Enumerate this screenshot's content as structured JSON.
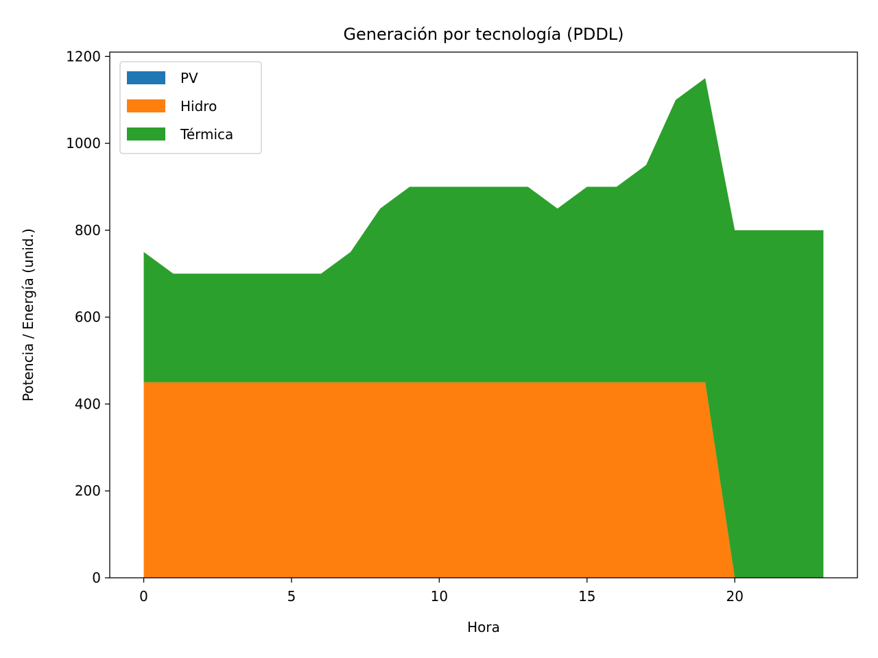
{
  "chart_data": {
    "type": "area",
    "stacked": true,
    "title": "Generación por tecnología (PDDL)",
    "xlabel": "Hora",
    "ylabel": "Potencia / Energía (unid.)",
    "xlim": [
      -1.15,
      24.15
    ],
    "ylim": [
      0,
      1210
    ],
    "xticks": [
      0,
      5,
      10,
      15,
      20
    ],
    "yticks": [
      0,
      200,
      400,
      600,
      800,
      1000,
      1200
    ],
    "x": [
      0,
      1,
      2,
      3,
      4,
      5,
      6,
      7,
      8,
      9,
      10,
      11,
      12,
      13,
      14,
      15,
      16,
      17,
      18,
      19,
      20,
      21,
      22,
      23
    ],
    "series": [
      {
        "name": "PV",
        "color": "#1f77b4",
        "values": [
          0,
          0,
          0,
          0,
          0,
          0,
          0,
          0,
          0,
          0,
          0,
          0,
          0,
          0,
          0,
          0,
          0,
          0,
          0,
          0,
          0,
          0,
          0,
          0
        ]
      },
      {
        "name": "Hidro",
        "color": "#ff7f0e",
        "values": [
          450,
          450,
          450,
          450,
          450,
          450,
          450,
          450,
          450,
          450,
          450,
          450,
          450,
          450,
          450,
          450,
          450,
          450,
          450,
          450,
          0,
          0,
          0,
          0
        ]
      },
      {
        "name": "Térmica",
        "color": "#2ca02c",
        "values": [
          300,
          250,
          250,
          250,
          250,
          250,
          250,
          300,
          400,
          450,
          450,
          450,
          450,
          450,
          400,
          450,
          450,
          500,
          650,
          700,
          800,
          800,
          800,
          800
        ]
      }
    ],
    "legend_position": "top-left",
    "grid": false
  }
}
